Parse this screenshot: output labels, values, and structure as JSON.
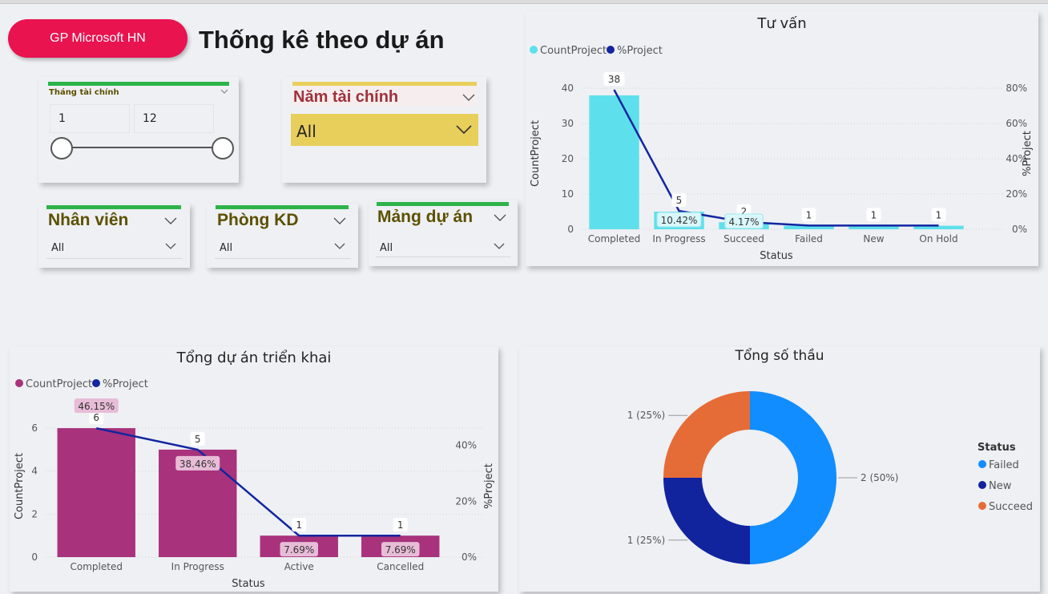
{
  "header": {
    "brand_button": "GP Microsoft HN",
    "title": "Thống kê theo dự án"
  },
  "slicers": {
    "month": {
      "title": "Tháng tài chính",
      "min": "1",
      "max": "12"
    },
    "year": {
      "title": "Năm tài chính",
      "value": "All"
    },
    "employee": {
      "title": "Nhân viên",
      "value": "All"
    },
    "department": {
      "title": "Phòng KD",
      "value": "All"
    },
    "project_area": {
      "title": "Mảng dự án",
      "value": "All"
    }
  },
  "colors": {
    "brand": "#e8134f",
    "slicer_green": "#2db34a",
    "slicer_yellow": "#e8cf5c",
    "tuvan_bar": "#5ee0ec",
    "line": "#1226a0",
    "trienkhai_bar": "#a8327c",
    "failed": "#118dff",
    "new": "#12239e",
    "succeed": "#e66c37"
  },
  "chart_data": [
    {
      "type": "bar",
      "title": "Tư vấn",
      "legend": [
        "CountProject",
        "%Project"
      ],
      "legend_position": "top-left",
      "categories": [
        "Completed",
        "In Progress",
        "Succeed",
        "Failed",
        "New",
        "On Hold"
      ],
      "series": [
        {
          "name": "CountProject",
          "values": [
            38,
            5,
            2,
            1,
            1,
            1
          ]
        },
        {
          "name": "%Project",
          "type": "line",
          "values": [
            79.17,
            10.42,
            4.17,
            2.08,
            2.08,
            2.08
          ]
        }
      ],
      "value_labels": [
        "38",
        "5",
        "2",
        "1",
        "1",
        "1"
      ],
      "percent_labels": [
        "",
        "10.42%",
        "4.17%",
        "",
        "",
        ""
      ],
      "xlabel": "Status",
      "ylabel": "CountProject",
      "y2label": "%Project",
      "yticks": [
        "0",
        "10",
        "20",
        "30",
        "40"
      ],
      "y2ticks": [
        "0%",
        "20%",
        "40%",
        "60%",
        "80%"
      ],
      "ylim": [
        0,
        43
      ],
      "y2lim": [
        0,
        86
      ]
    },
    {
      "type": "bar",
      "title": "Tổng dự án triển khai",
      "legend": [
        "CountProject",
        "%Project"
      ],
      "legend_position": "top-left",
      "categories": [
        "Completed",
        "In Progress",
        "Active",
        "Cancelled"
      ],
      "series": [
        {
          "name": "CountProject",
          "values": [
            6,
            5,
            1,
            1
          ]
        },
        {
          "name": "%Project",
          "type": "line",
          "values": [
            46.15,
            38.46,
            7.69,
            7.69
          ]
        }
      ],
      "value_labels": [
        "6",
        "5",
        "1",
        "1"
      ],
      "percent_labels": [
        "46.15%",
        "38.46%",
        "7.69%",
        "7.69%"
      ],
      "xlabel": "Status",
      "ylabel": "CountProject",
      "y2label": "%Project",
      "yticks": [
        "0",
        "2",
        "4",
        "6"
      ],
      "y2ticks": [
        "0%",
        "20%",
        "40%"
      ],
      "ylim": [
        0,
        6.6
      ],
      "y2lim": [
        0,
        50.8
      ]
    },
    {
      "type": "pie",
      "subtype": "donut",
      "title": "Tổng số thầu",
      "legend_title": "Status",
      "legend_position": "right",
      "categories": [
        "Failed",
        "New",
        "Succeed"
      ],
      "values": [
        2,
        1,
        1
      ],
      "labels": [
        "2 (50%)",
        "1 (25%)",
        "1 (25%)"
      ]
    }
  ]
}
